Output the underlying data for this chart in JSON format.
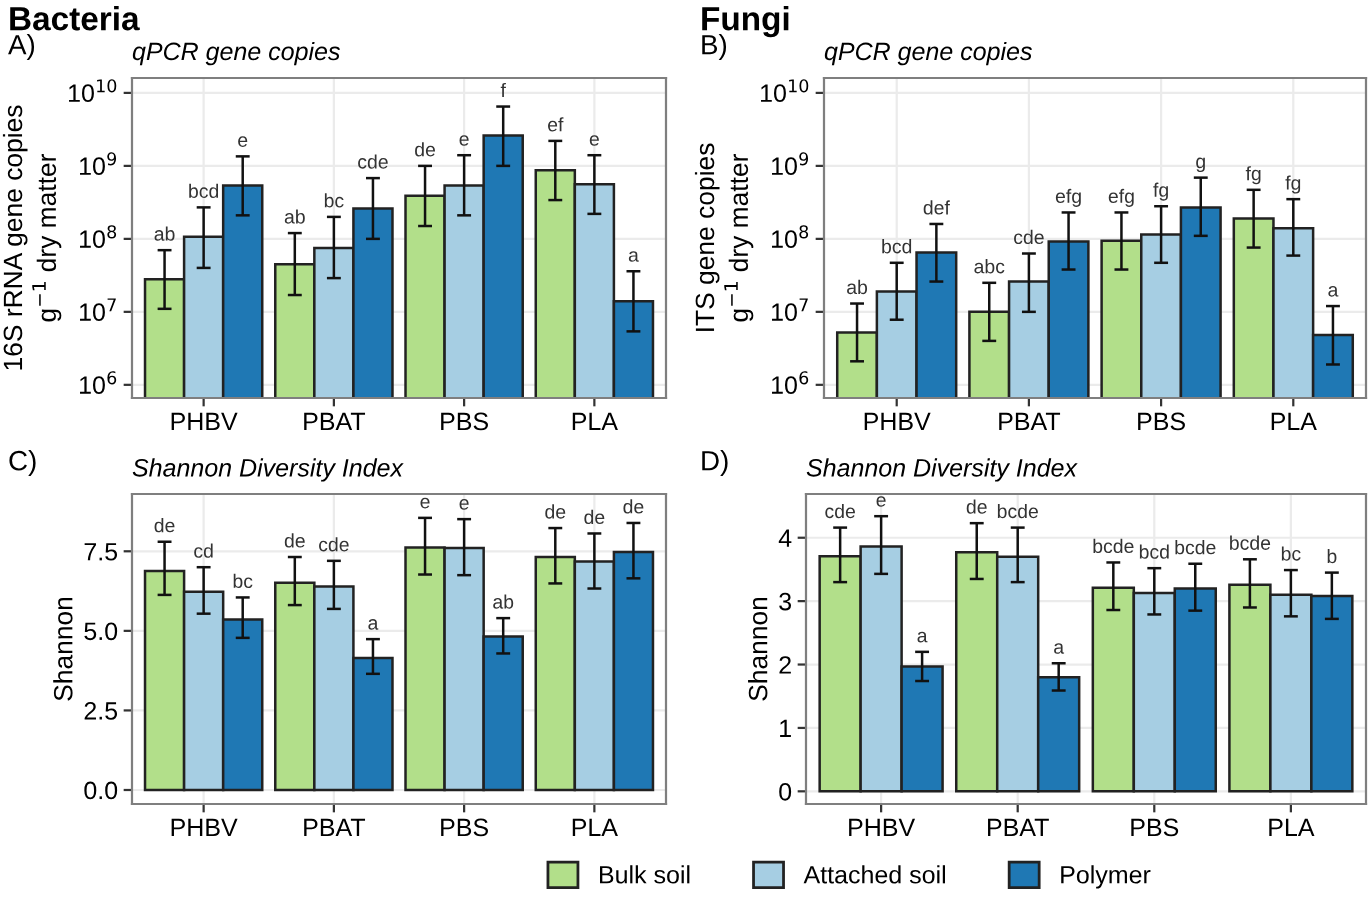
{
  "chart_data": [
    {
      "type": "bar",
      "title": "qPCR gene copies",
      "ylabel": "16S rRNA gene copies\ng$^{−1}$ dry matter",
      "annotations": [
        "Bacteria",
        "A)"
      ],
      "categories": [
        "PHBV",
        "PBAT",
        "PBS",
        "PLA"
      ],
      "log": "y",
      "grid": true,
      "ylim": [
        660000.0,
        16000000000.0
      ],
      "yticks": [
        {
          "value": 1000000.0,
          "label": "10$^{6}$"
        },
        {
          "value": 10000000.0,
          "label": "10$^{7}$"
        },
        {
          "value": 100000000.0,
          "label": "10$^{8}$"
        },
        {
          "value": 1000000000.0,
          "label": "10$^{9}$"
        },
        {
          "value": 10000000000.0,
          "label": "10$^{10}$"
        }
      ],
      "series": [
        {
          "color": "#b2df8a",
          "values": [
            28000000.0,
            45000000.0,
            390000000.0,
            870000000.0
          ],
          "errors": [
            [
              11000000.0,
              70000000.0
            ],
            [
              17000000.0,
              120000000.0
            ],
            [
              150000000.0,
              1000000000.0
            ],
            [
              340000000.0,
              2200000000.0
            ]
          ],
          "value_labels": [
            "ab",
            "ab",
            "de",
            "ef"
          ]
        },
        {
          "color": "#a6cee3",
          "values": [
            107000000.0,
            75000000.0,
            540000000.0,
            560000000.0
          ],
          "errors": [
            [
              40000000.0,
              270000000.0
            ],
            [
              29000000.0,
              200000000.0
            ],
            [
              210000000.0,
              1400000000.0
            ],
            [
              220000000.0,
              1400000000.0
            ]
          ],
          "value_labels": [
            "bcd",
            "bc",
            "e",
            "e"
          ]
        },
        {
          "color": "#1f78b4",
          "values": [
            540000000.0,
            260000000.0,
            2600000000.0,
            14000000.0
          ],
          "errors": [
            [
              210000000.0,
              1350000000.0
            ],
            [
              100000000.0,
              680000000.0
            ],
            [
              1000000000.0,
              6500000000.0
            ],
            [
              5400000.0,
              36000000.0
            ]
          ],
          "value_labels": [
            "e",
            "cde",
            "f",
            "a"
          ]
        }
      ]
    },
    {
      "type": "bar",
      "title": "qPCR gene copies",
      "ylabel": "ITS gene copies\ng$^{−1}$ dry matter",
      "annotations": [
        "Fungi",
        "B)"
      ],
      "categories": [
        "PHBV",
        "PBAT",
        "PBS",
        "PLA"
      ],
      "log": "y",
      "grid": true,
      "ylim": [
        660000.0,
        16000000000.0
      ],
      "yticks": [
        {
          "value": 1000000.0,
          "label": "10$^{6}$"
        },
        {
          "value": 10000000.0,
          "label": "10$^{7}$"
        },
        {
          "value": 100000000.0,
          "label": "10$^{8}$"
        },
        {
          "value": 1000000000.0,
          "label": "10$^{9}$"
        },
        {
          "value": 10000000000.0,
          "label": "10$^{10}$"
        }
      ],
      "series": [
        {
          "color": "#b2df8a",
          "values": [
            5200000.0,
            10000000.0,
            94000000.0,
            190000000.0
          ],
          "errors": [
            [
              2100000.0,
              13000000.0
            ],
            [
              4000000.0,
              25000000.0
            ],
            [
              38000000.0,
              230000000.0
            ],
            [
              76000000.0,
              470000000.0
            ]
          ],
          "value_labels": [
            "ab",
            "abc",
            "efg",
            "fg"
          ]
        },
        {
          "color": "#a6cee3",
          "values": [
            19000000.0,
            26000000.0,
            115000000.0,
            140000000.0
          ],
          "errors": [
            [
              7800000.0,
              47000000.0
            ],
            [
              10000000.0,
              63000000.0
            ],
            [
              47000000.0,
              280000000.0
            ],
            [
              59000000.0,
              350000000.0
            ]
          ],
          "value_labels": [
            "bcd",
            "cde",
            "fg",
            "fg"
          ]
        },
        {
          "color": "#1f78b4",
          "values": [
            65000000.0,
            92000000.0,
            270000000.0,
            4800000.0
          ],
          "errors": [
            [
              26000000.0,
              160000000.0
            ],
            [
              38000000.0,
              230000000.0
            ],
            [
              110000000.0,
              690000000.0
            ],
            [
              1900000.0,
              12000000.0
            ]
          ],
          "value_labels": [
            "def",
            "efg",
            "g",
            "a"
          ]
        }
      ]
    },
    {
      "type": "bar",
      "title": "Shannon Diversity Index",
      "ylabel": "Shannon",
      "annotations": [
        "C)"
      ],
      "categories": [
        "PHBV",
        "PBAT",
        "PBS",
        "PLA"
      ],
      "grid": true,
      "ylim": [
        -0.44,
        9.3
      ],
      "yticks": [
        {
          "value": 0,
          "label": "0.0"
        },
        {
          "value": 2.5,
          "label": "2.5"
        },
        {
          "value": 5,
          "label": "5.0"
        },
        {
          "value": 7.5,
          "label": "7.5"
        }
      ],
      "series": [
        {
          "color": "#b2df8a",
          "values": [
            6.88,
            6.51,
            7.62,
            7.32
          ],
          "errors": [
            [
              6.13,
              7.8
            ],
            [
              5.81,
              7.32
            ],
            [
              6.77,
              8.55
            ],
            [
              6.49,
              8.23
            ]
          ],
          "value_labels": [
            "de",
            "de",
            "e",
            "de"
          ]
        },
        {
          "color": "#a6cee3",
          "values": [
            6.23,
            6.39,
            7.6,
            7.18
          ],
          "errors": [
            [
              5.54,
              7.0
            ],
            [
              5.69,
              7.2
            ],
            [
              6.75,
              8.51
            ],
            [
              6.33,
              8.06
            ]
          ],
          "value_labels": [
            "cd",
            "cde",
            "e",
            "de"
          ]
        },
        {
          "color": "#1f78b4",
          "values": [
            5.36,
            4.15,
            4.82,
            7.48
          ],
          "errors": [
            [
              4.78,
              6.05
            ],
            [
              3.65,
              4.74
            ],
            [
              4.29,
              5.4
            ],
            [
              6.65,
              8.39
            ]
          ],
          "value_labels": [
            "bc",
            "a",
            "ab",
            "de"
          ]
        }
      ]
    },
    {
      "type": "bar",
      "title": "Shannon Diversity Index",
      "ylabel": "Shannon",
      "annotations": [
        "D)"
      ],
      "categories": [
        "PHBV",
        "PBAT",
        "PBS",
        "PLA"
      ],
      "grid": true,
      "ylim": [
        -0.2,
        4.69
      ],
      "yticks": [
        0,
        1,
        2,
        3,
        4
      ],
      "legend": "bottom",
      "series": [
        {
          "name": "Bulk soil",
          "color": "#b2df8a",
          "values": [
            3.71,
            3.77,
            3.21,
            3.26
          ],
          "errors": [
            [
              3.3,
              4.16
            ],
            [
              3.35,
              4.23
            ],
            [
              2.86,
              3.61
            ],
            [
              2.9,
              3.66
            ]
          ],
          "value_labels": [
            "cde",
            "de",
            "bcde",
            "bcde"
          ]
        },
        {
          "name": "Attached soil",
          "color": "#a6cee3",
          "values": [
            3.86,
            3.7,
            3.13,
            3.1
          ],
          "errors": [
            [
              3.43,
              4.34
            ],
            [
              3.3,
              4.16
            ],
            [
              2.79,
              3.52
            ],
            [
              2.76,
              3.49
            ]
          ],
          "value_labels": [
            "e",
            "bcde",
            "bcd",
            "bc"
          ]
        },
        {
          "name": "Polymer",
          "color": "#1f78b4",
          "values": [
            1.97,
            1.8,
            3.2,
            3.08
          ],
          "errors": [
            [
              1.74,
              2.2
            ],
            [
              1.59,
              2.02
            ],
            [
              2.85,
              3.59
            ],
            [
              2.72,
              3.45
            ]
          ],
          "value_labels": [
            "a",
            "a",
            "bcde",
            "b"
          ]
        }
      ]
    }
  ]
}
